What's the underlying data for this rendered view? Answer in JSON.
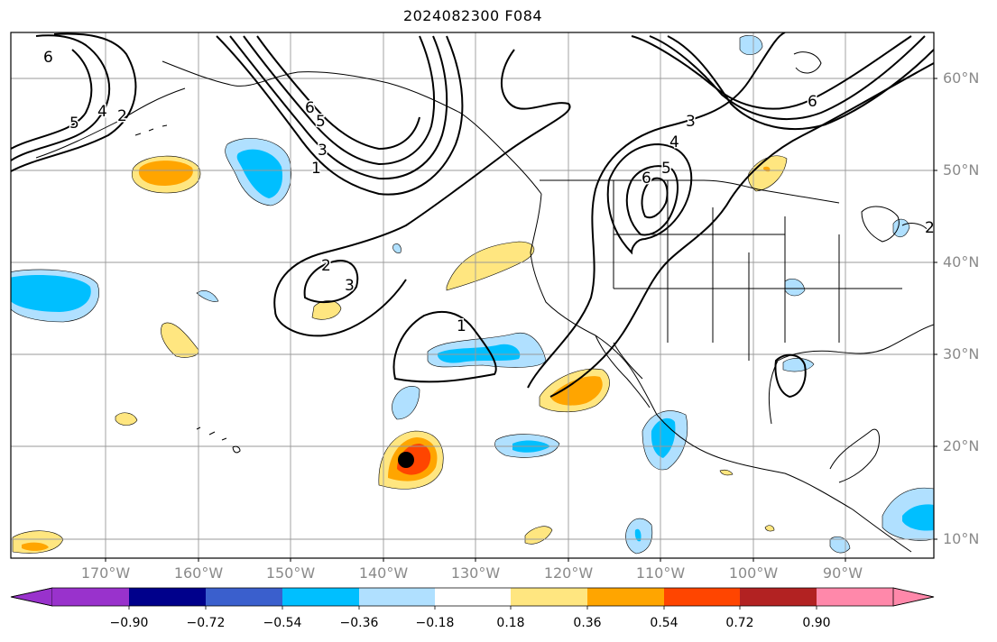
{
  "title": "2024082300 F084",
  "lat_labels": [
    "60°N",
    "50°N",
    "40°N",
    "30°N",
    "20°N",
    "10°N"
  ],
  "lon_labels": [
    "170°W",
    "160°W",
    "150°W",
    "140°W",
    "130°W",
    "120°W",
    "110°W",
    "100°W",
    "90°W"
  ],
  "colorbar": {
    "ticks": [
      "−0.90",
      "−0.72",
      "−0.54",
      "−0.36",
      "−0.18",
      "0.18",
      "0.36",
      "0.54",
      "0.72",
      "0.90"
    ],
    "colors": [
      "#9932cc",
      "#00008b",
      "#3a5fcd",
      "#00bfff",
      "#b0e0ff",
      "#ffffff",
      "#ffe680",
      "#ffa500",
      "#ff4500",
      "#b22222",
      "#ff88aa"
    ]
  },
  "contour_labels": [
    "6",
    "5",
    "4",
    "2",
    "6",
    "5",
    "1",
    "3",
    "2",
    "3",
    "1",
    "6",
    "5",
    "3",
    "4",
    "6",
    "2"
  ],
  "colors": {
    "positive_light": "#ffe680",
    "positive_mid": "#ffa500",
    "positive_high": "#ff4500",
    "negative_light": "#b0e0ff",
    "negative_mid": "#00bfff",
    "marker": "#000000"
  }
}
